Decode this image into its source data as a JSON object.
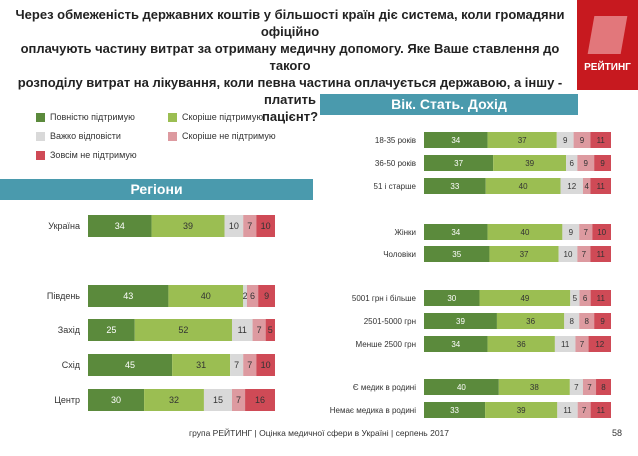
{
  "header": {
    "title_lines": [
      "Через обмеженість державних коштів у більшості країн діє система, коли громадяни офіційно",
      "оплачують частину витрат за отриману медичну допомогу. Яке Ваше ставлення до такого",
      "розподілу витрат на лікування, коли певна частина оплачується державою, а іншу - платить",
      "пацієнт?"
    ]
  },
  "logo": {
    "text": "РЕЙТИНГ"
  },
  "legend": {
    "items": [
      {
        "label": "Повністю підтримую",
        "color": "#5b8a3c"
      },
      {
        "label": "Скоріше підтримую",
        "color": "#9bbe52"
      },
      {
        "label": "Важко відповісти",
        "color": "#d9d9d9"
      },
      {
        "label": "Скоріше не підтримую",
        "color": "#dd9aa0"
      },
      {
        "label": "Зовсім не підтримую",
        "color": "#cf4a56"
      }
    ]
  },
  "banners": {
    "regions": "Регіони",
    "demographics": "Вік. Стать. Дохід"
  },
  "chart_data": [
    {
      "type": "bar",
      "orientation": "horizontal-stacked-percent",
      "title": "Регіони",
      "series": [
        "Повністю підтримую",
        "Скоріше підтримую",
        "Важко відповісти",
        "Скоріше не підтримую",
        "Зовсім не підтримую"
      ],
      "categories": [
        "Україна",
        "Південь",
        "Захід",
        "Схід",
        "Центр"
      ],
      "values": [
        [
          34,
          39,
          10,
          7,
          10
        ],
        [
          43,
          40,
          2,
          6,
          9
        ],
        [
          25,
          52,
          11,
          7,
          5
        ],
        [
          45,
          31,
          7,
          7,
          10
        ],
        [
          30,
          32,
          15,
          7,
          16
        ]
      ]
    },
    {
      "type": "bar",
      "orientation": "horizontal-stacked-percent",
      "title": "Вік. Стать. Дохід",
      "series": [
        "Повністю підтримую",
        "Скоріше підтримую",
        "Важко відповісти",
        "Скоріше не підтримую",
        "Зовсім не підтримую"
      ],
      "categories": [
        "18-35 років",
        "36-50 років",
        "51 і старше",
        "Жінки",
        "Чоловіки",
        "5001 грн і більше",
        "2501-5000 грн",
        "Менше 2500 грн",
        "Є медик в родині",
        "Немає медика в родині"
      ],
      "values": [
        [
          34,
          37,
          9,
          9,
          11
        ],
        [
          37,
          39,
          6,
          9,
          9
        ],
        [
          33,
          40,
          12,
          4,
          11
        ],
        [
          34,
          40,
          9,
          7,
          10
        ],
        [
          35,
          37,
          10,
          7,
          11
        ],
        [
          30,
          49,
          5,
          6,
          11
        ],
        [
          39,
          36,
          8,
          8,
          9
        ],
        [
          34,
          36,
          11,
          7,
          12
        ],
        [
          40,
          38,
          7,
          7,
          8
        ],
        [
          33,
          39,
          11,
          7,
          11
        ]
      ]
    }
  ],
  "footer": {
    "text": "група РЕЙТИНГ  |  Оцінка медичної сфери в Україні  |  серпень 2017",
    "page": "58"
  }
}
